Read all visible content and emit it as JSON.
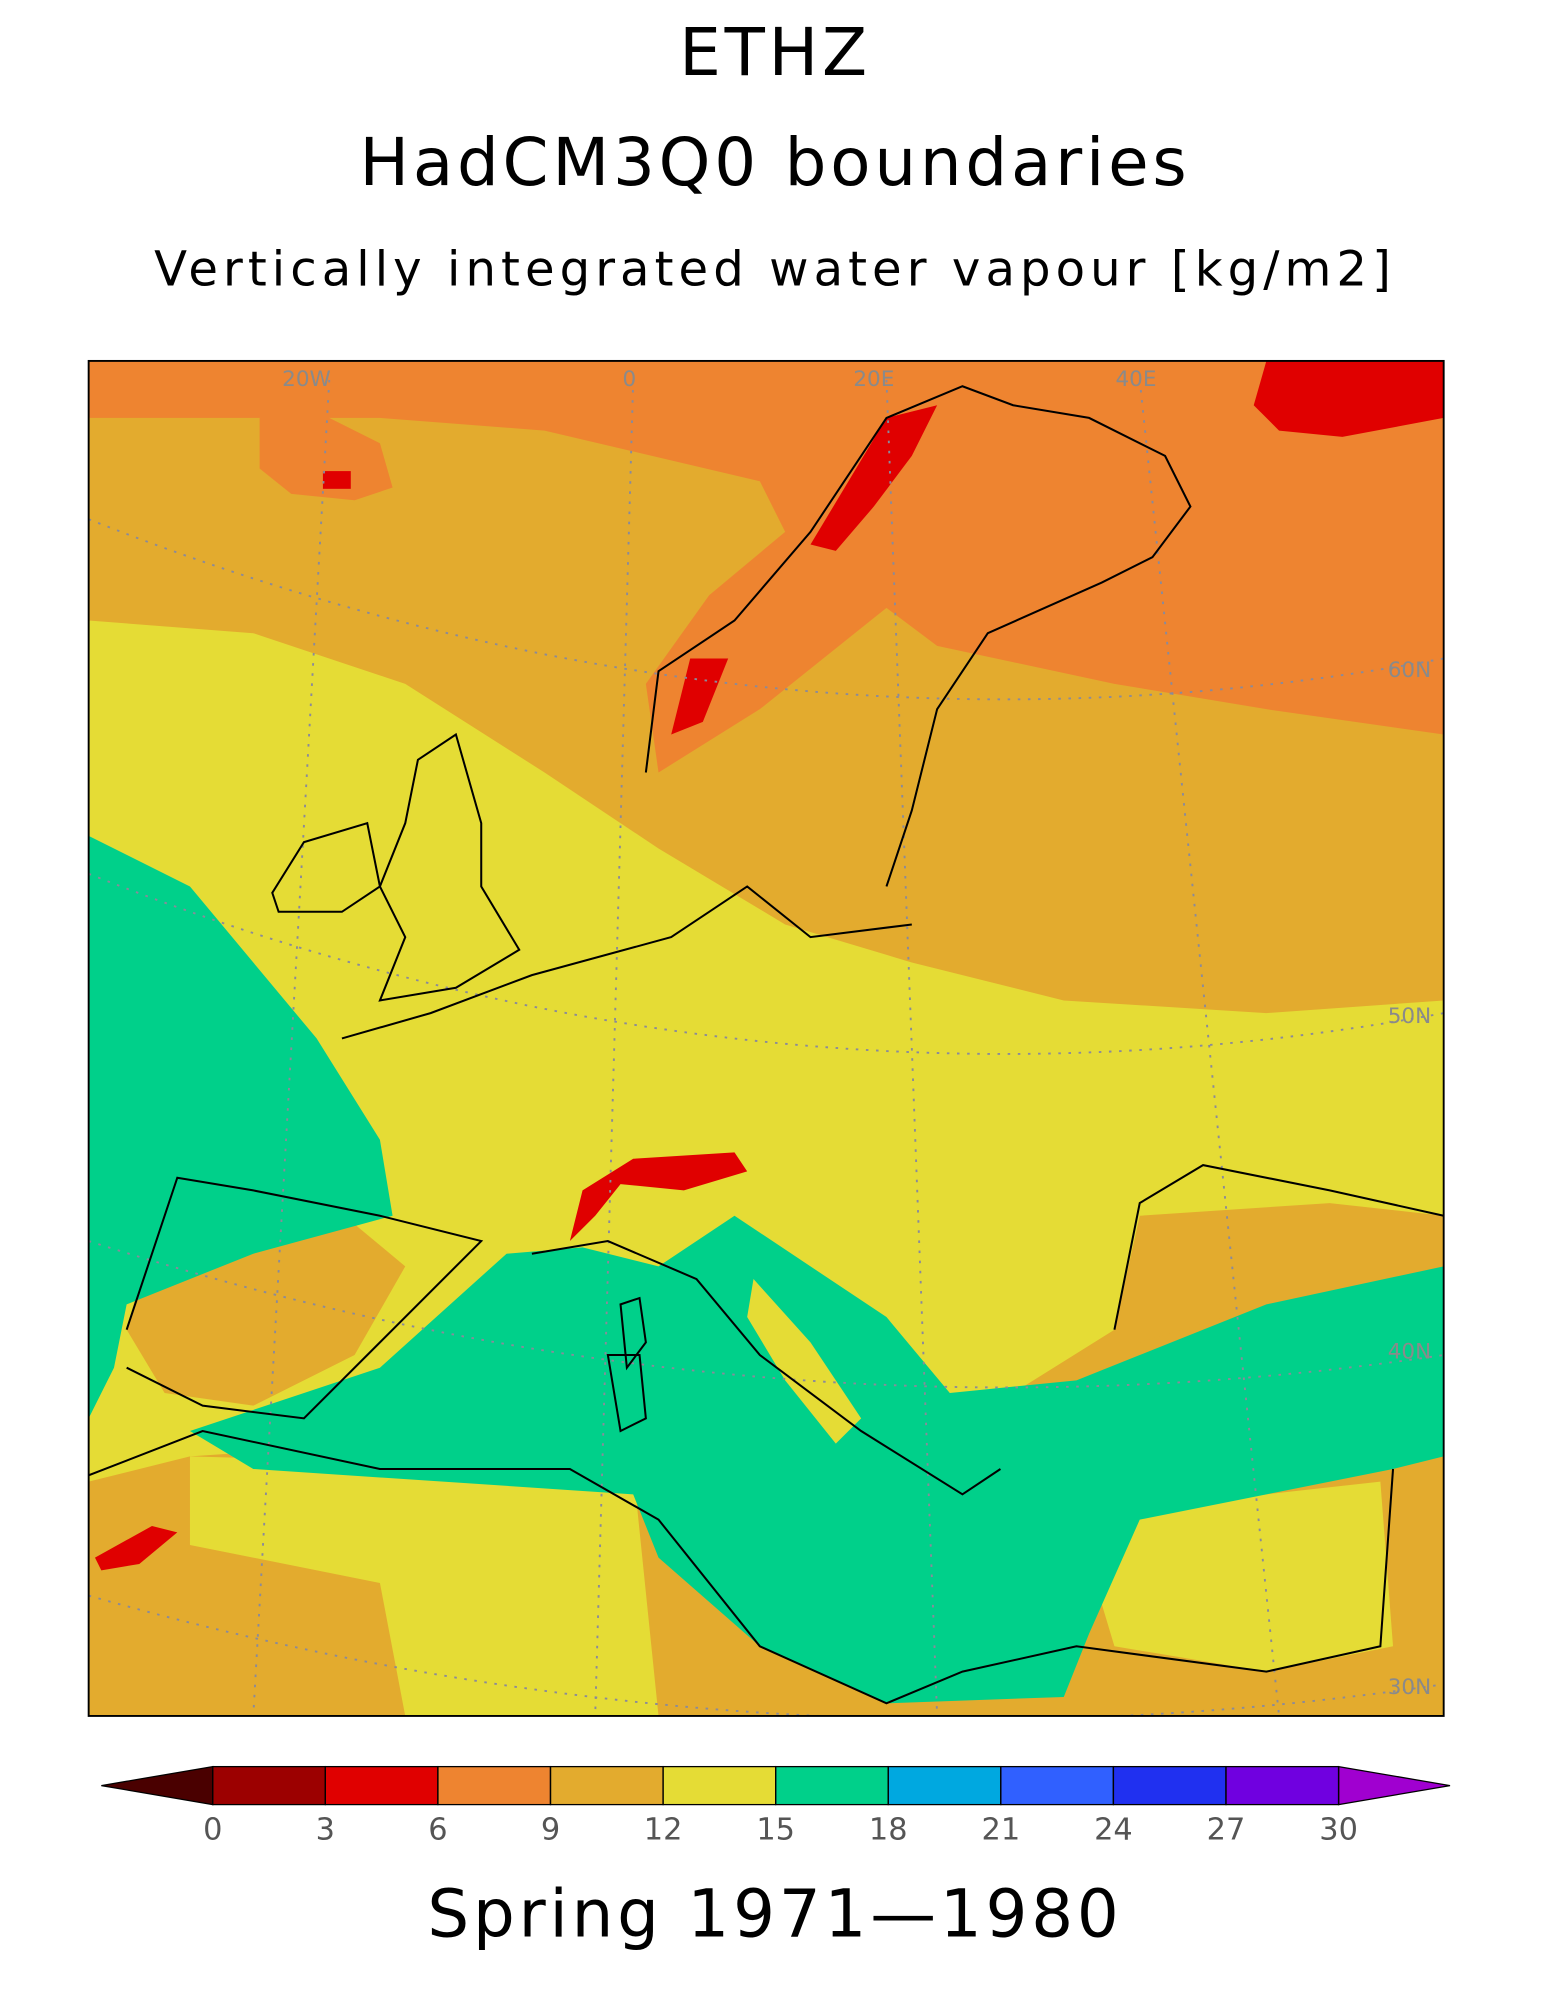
{
  "header": {
    "title": "ETHZ",
    "subtitle": "HadCM3Q0 boundaries",
    "variable": "Vertically integrated water vapour [kg/m2]"
  },
  "map": {
    "lon_labels": [
      "20W",
      "0",
      "20E",
      "40E"
    ],
    "lat_labels": [
      "60N",
      "50N",
      "40N",
      "30N"
    ]
  },
  "colorbar": {
    "ticks": [
      0,
      3,
      6,
      9,
      12,
      15,
      18,
      21,
      24,
      27,
      30
    ],
    "colors": [
      "#9c0000",
      "#e00000",
      "#ee8430",
      "#e3ab2e",
      "#e5dc35",
      "#00d08a",
      "#00a8e0",
      "#3060ff",
      "#2030f0",
      "#7000e0"
    ],
    "under_color": "#4a0000",
    "over_color": "#a000d0"
  },
  "footer": {
    "period": "Spring 1971—1980"
  }
}
